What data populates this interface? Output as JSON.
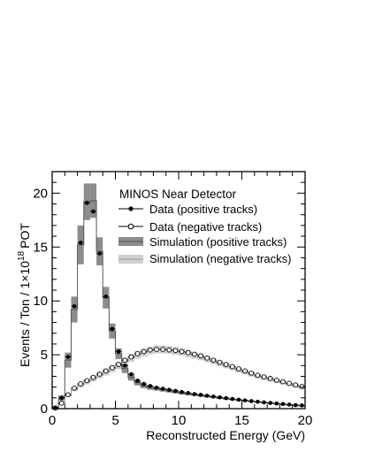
{
  "chart_data": {
    "type": "line",
    "title": "",
    "annotation": "MINOS Near Detector",
    "xlabel": "Reconstructed Energy (GeV)",
    "ylabel": {
      "main": "Events / Ton / 1",
      "times": "×",
      "base": "10",
      "exponent": "18",
      "unit": "POT"
    },
    "xlim": [
      0,
      20
    ],
    "ylim": [
      0,
      22
    ],
    "xticks": [
      0,
      5,
      10,
      15,
      20
    ],
    "yticks": [
      0,
      5,
      10,
      15,
      20
    ],
    "xtick_labels": [
      "0",
      "5",
      "10",
      "15",
      "20"
    ],
    "ytick_labels": [
      "0",
      "5",
      "10",
      "15",
      "20"
    ],
    "grid": false,
    "legend_position": "top-right",
    "legend": [
      {
        "label": "Data (positive tracks)",
        "marker": "filled-circle"
      },
      {
        "label": "Data (negative tracks)",
        "marker": "open-circle"
      },
      {
        "label": "Simulation (positive tracks)",
        "marker": "dark-band"
      },
      {
        "label": "Simulation (negative tracks)",
        "marker": "light-band"
      }
    ],
    "bin_edges": [
      0,
      0.5,
      1,
      1.5,
      2,
      2.5,
      3,
      3.5,
      4,
      4.5,
      5,
      5.5,
      6,
      6.5,
      7,
      7.5,
      8,
      8.5,
      9,
      9.5,
      10,
      10.5,
      11,
      11.5,
      12,
      12.5,
      13,
      13.5,
      14,
      14.5,
      15,
      15.5,
      16,
      16.5,
      17,
      17.5,
      18,
      18.5,
      19,
      19.5,
      20
    ],
    "x": [
      0.25,
      0.75,
      1.25,
      1.75,
      2.25,
      2.75,
      3.25,
      3.75,
      4.25,
      4.75,
      5.25,
      5.75,
      6.25,
      6.75,
      7.25,
      7.75,
      8.25,
      8.75,
      9.25,
      9.75,
      10.25,
      10.75,
      11.25,
      11.75,
      12.25,
      12.75,
      13.25,
      13.75,
      14.25,
      14.75,
      15.25,
      15.75,
      16.25,
      16.75,
      17.25,
      17.75,
      18.25,
      18.75,
      19.25,
      19.75
    ],
    "series": [
      {
        "name": "Data (positive tracks)",
        "kind": "points",
        "values": [
          0.1,
          1.0,
          4.8,
          9.5,
          15.4,
          19.1,
          18.3,
          14.4,
          10.4,
          7.4,
          5.3,
          4.0,
          3.2,
          2.6,
          2.3,
          2.1,
          1.95,
          1.85,
          1.75,
          1.65,
          1.55,
          1.45,
          1.35,
          1.28,
          1.2,
          1.12,
          1.05,
          0.98,
          0.9,
          0.83,
          0.77,
          0.7,
          0.64,
          0.58,
          0.53,
          0.48,
          0.43,
          0.38,
          0.33,
          0.3
        ]
      },
      {
        "name": "Data (negative tracks)",
        "kind": "points",
        "values": [
          0.05,
          0.5,
          1.3,
          1.9,
          2.3,
          2.6,
          2.9,
          3.2,
          3.5,
          3.8,
          4.1,
          4.5,
          4.8,
          5.1,
          5.3,
          5.45,
          5.5,
          5.5,
          5.45,
          5.4,
          5.3,
          5.2,
          5.05,
          4.9,
          4.7,
          4.5,
          4.3,
          4.1,
          3.9,
          3.7,
          3.5,
          3.3,
          3.1,
          2.95,
          2.8,
          2.65,
          2.5,
          2.35,
          2.2,
          2.05
        ]
      },
      {
        "name": "Simulation (positive tracks)",
        "kind": "histogram",
        "values": [
          0.1,
          1.0,
          4.5,
          9.2,
          15.2,
          19.2,
          19.3,
          14.6,
          10.3,
          7.2,
          5.1,
          3.7,
          2.9,
          2.4,
          2.1,
          1.95,
          1.85,
          1.75,
          1.65,
          1.55,
          1.45,
          1.37,
          1.3,
          1.22,
          1.15,
          1.08,
          1.0,
          0.93,
          0.86,
          0.8,
          0.74,
          0.68,
          0.62,
          0.56,
          0.51,
          0.46,
          0.41,
          0.36,
          0.32,
          0.28
        ],
        "band_halfwidth": [
          0.1,
          0.25,
          0.7,
          1.2,
          1.8,
          1.7,
          1.6,
          1.3,
          1.0,
          0.7,
          0.5,
          0.4,
          0.3,
          0.25,
          0.2,
          0.2,
          0.18,
          0.17,
          0.16,
          0.15,
          0.14,
          0.13,
          0.13,
          0.12,
          0.11,
          0.1,
          0.1,
          0.09,
          0.08,
          0.08,
          0.07,
          0.07,
          0.06,
          0.06,
          0.05,
          0.05,
          0.04,
          0.04,
          0.03,
          0.03
        ]
      },
      {
        "name": "Simulation (negative tracks)",
        "kind": "histogram",
        "values": [
          0.05,
          0.5,
          1.2,
          1.8,
          2.2,
          2.5,
          2.8,
          3.1,
          3.4,
          3.7,
          4.0,
          4.35,
          4.7,
          5.0,
          5.2,
          5.4,
          5.5,
          5.5,
          5.45,
          5.35,
          5.25,
          5.1,
          4.95,
          4.8,
          4.6,
          4.4,
          4.2,
          4.0,
          3.8,
          3.6,
          3.4,
          3.2,
          3.0,
          2.85,
          2.7,
          2.55,
          2.4,
          2.25,
          2.1,
          1.95
        ],
        "band_halfwidth": [
          0.02,
          0.05,
          0.12,
          0.18,
          0.22,
          0.25,
          0.28,
          0.3,
          0.32,
          0.33,
          0.34,
          0.35,
          0.36,
          0.37,
          0.37,
          0.37,
          0.37,
          0.37,
          0.36,
          0.35,
          0.34,
          0.33,
          0.32,
          0.31,
          0.3,
          0.28,
          0.27,
          0.26,
          0.25,
          0.24,
          0.22,
          0.21,
          0.2,
          0.19,
          0.18,
          0.17,
          0.16,
          0.15,
          0.14,
          0.13
        ]
      }
    ],
    "colors": {
      "positive_band": "#8c8c8c",
      "negative_band": "#cfcfcf",
      "positive_line": "#555555",
      "negative_line": "#9a9a9a",
      "axis": "#000000"
    }
  }
}
